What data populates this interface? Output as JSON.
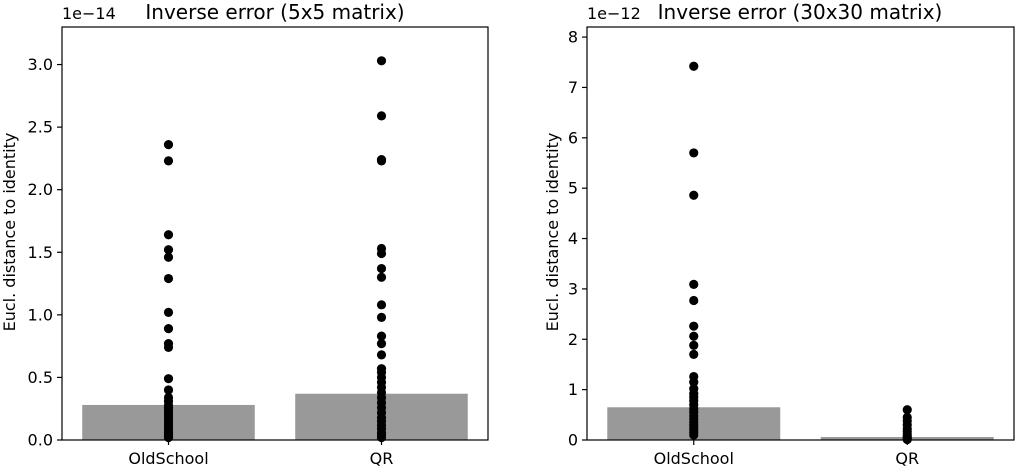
{
  "chart_data": [
    {
      "type": "bar",
      "title": "Inverse error (5x5 matrix)",
      "ylabel": "Eucl. distance to identity",
      "offset_label": "1e−14",
      "categories": [
        "OldSchool",
        "QR"
      ],
      "values": [
        0.28,
        0.37
      ],
      "ylim": [
        0,
        3.3
      ],
      "yticks": [
        0,
        0.5,
        1.0,
        1.5,
        2.0,
        2.5,
        3.0
      ],
      "ytick_labels": [
        "0.0",
        "0.5",
        "1.0",
        "1.5",
        "2.0",
        "2.5",
        "3.0"
      ],
      "bar_color": "#999999",
      "point_color": "#000000",
      "points": [
        [
          2.36,
          2.23,
          1.64,
          1.52,
          1.46,
          1.29,
          1.02,
          0.89,
          0.77,
          0.74,
          0.49,
          0.4,
          0.34,
          0.31,
          0.28,
          0.26,
          0.24,
          0.22,
          0.2,
          0.18,
          0.16,
          0.14,
          0.12,
          0.1,
          0.08,
          0.06,
          0.05,
          0.04,
          0.03,
          0.02
        ],
        [
          3.03,
          2.59,
          2.24,
          2.23,
          1.53,
          1.49,
          1.37,
          1.3,
          1.08,
          0.98,
          0.83,
          0.77,
          0.68,
          0.57,
          0.54,
          0.5,
          0.46,
          0.42,
          0.38,
          0.34,
          0.3,
          0.26,
          0.22,
          0.18,
          0.15,
          0.12,
          0.09,
          0.06,
          0.04,
          0.02
        ]
      ]
    },
    {
      "type": "bar",
      "title": "Inverse error (30x30 matrix)",
      "ylabel": "Eucl. distance to identity",
      "offset_label": "1e−12",
      "categories": [
        "OldSchool",
        "QR"
      ],
      "values": [
        0.65,
        0.06
      ],
      "ylim": [
        0,
        8.2
      ],
      "yticks": [
        0,
        1,
        2,
        3,
        4,
        5,
        6,
        7,
        8
      ],
      "ytick_labels": [
        "0",
        "1",
        "2",
        "3",
        "4",
        "5",
        "6",
        "7",
        "8"
      ],
      "bar_color": "#999999",
      "point_color": "#000000",
      "points": [
        [
          7.42,
          5.7,
          4.86,
          3.09,
          2.77,
          2.26,
          2.06,
          1.88,
          1.7,
          1.26,
          1.15,
          1.02,
          0.92,
          0.85,
          0.78,
          0.7,
          0.62,
          0.55,
          0.48,
          0.42,
          0.36,
          0.3,
          0.25,
          0.2,
          0.15,
          0.1
        ],
        [
          0.6,
          0.45,
          0.38,
          0.3,
          0.22,
          0.17,
          0.12,
          0.08,
          0.05,
          0.03,
          0.01
        ]
      ]
    }
  ]
}
